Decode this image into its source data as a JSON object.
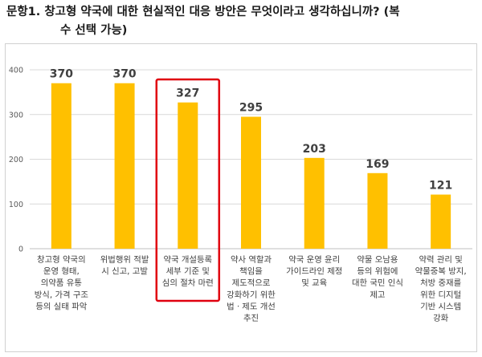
{
  "question": {
    "line1": "문항1. 창고형 약국에 대한 현실적인 대응 방안은 무엇이라고 생각하십니까? (복",
    "line2": "수 선택 가능)"
  },
  "chart_data": {
    "type": "bar",
    "title": "",
    "xlabel": "",
    "ylabel": "",
    "ylim": [
      0,
      400
    ],
    "yticks": [
      0,
      100,
      200,
      300,
      400
    ],
    "grid": true,
    "legend": "none",
    "bar_color": "#FFC000",
    "highlight_color": "#E0000F",
    "highlight_index": 2,
    "categories": [
      [
        "창고형 약국의",
        "운영 형태,",
        "의약품 유통",
        "방식, 가격 구조",
        "등의 실태 파악"
      ],
      [
        "위법행위 적발",
        "시 신고, 고발"
      ],
      [
        "약국 개설등록",
        "세부 기준 및",
        "심의 절차 마련"
      ],
      [
        "약사 역할과",
        "책임을",
        "제도적으로",
        "강화하기 위한",
        "법ㆍ제도 개선",
        "추진"
      ],
      [
        "약국 운영 윤리",
        "가이드라인 제정",
        "및 교육"
      ],
      [
        "약물 오남용",
        "등의 위험에",
        "대한 국민 인식",
        "제고"
      ],
      [
        "약력 관리 및",
        "약물중복 방지,",
        "처방 중재를",
        "위한 디지털",
        "기반 시스템",
        "강화"
      ]
    ],
    "values": [
      370,
      370,
      327,
      295,
      203,
      169,
      121
    ]
  }
}
